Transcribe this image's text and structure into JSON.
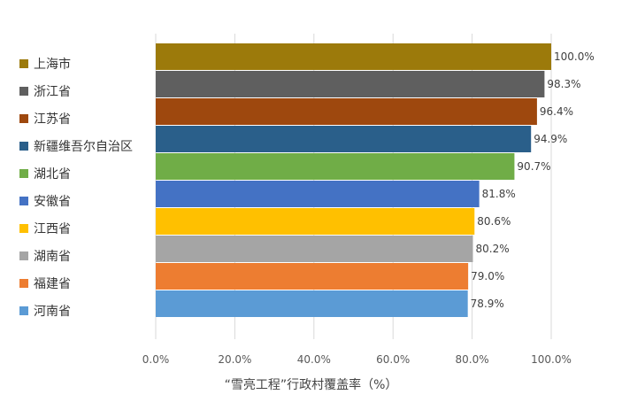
{
  "chart_data": {
    "type": "bar",
    "orientation": "horizontal",
    "categories": [
      "上海市",
      "浙江省",
      "江苏省",
      "新疆维吾尔自治区",
      "湖北省",
      "安徽省",
      "江西省",
      "湖南省",
      "福建省",
      "河南省"
    ],
    "values": [
      100.0,
      98.3,
      96.4,
      94.9,
      90.7,
      81.8,
      80.6,
      80.2,
      79.0,
      78.9
    ],
    "value_labels": [
      "100.0%",
      "98.3%",
      "96.4%",
      "94.9%",
      "90.7%",
      "81.8%",
      "80.6%",
      "80.2%",
      "79.0%",
      "78.9%"
    ],
    "colors": [
      "#9c7a0b",
      "#5f5f5f",
      "#9e480e",
      "#2a5f8a",
      "#70ad47",
      "#4472c4",
      "#ffc000",
      "#a5a5a5",
      "#ed7d31",
      "#5b9bd5"
    ],
    "xlim": [
      0,
      100
    ],
    "xticks": [
      0,
      20,
      40,
      60,
      80,
      100
    ],
    "xtick_labels": [
      "0.0%",
      "20.0%",
      "40.0%",
      "60.0%",
      "80.0%",
      "100.0%"
    ],
    "xlabel": "“雪亮工程”行政村覆盖率（%）",
    "grid": true,
    "legend_position": "left"
  }
}
